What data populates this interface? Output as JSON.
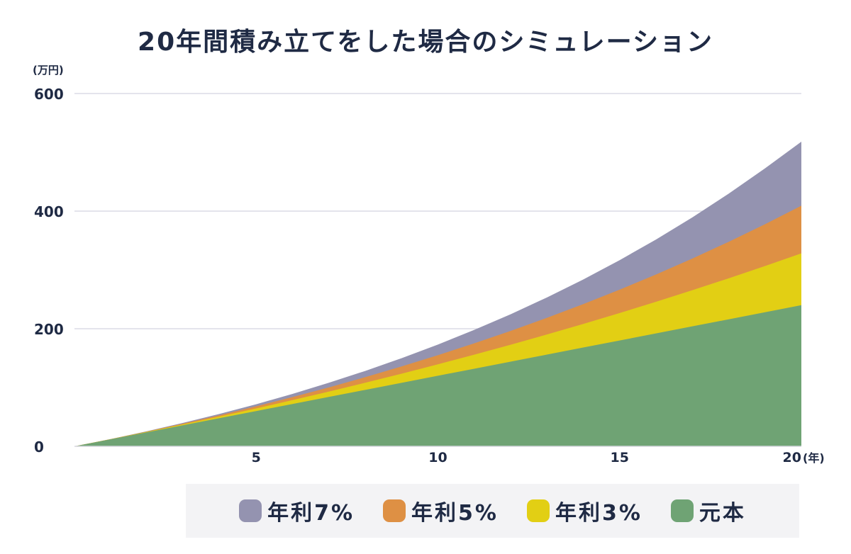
{
  "chart_data": {
    "type": "area",
    "stacked": false,
    "title": "20年間積み立てをした場合のシミュレーション",
    "y_unit_label": "(万円)",
    "x_unit_label": "(年)",
    "x_domain": [
      0,
      20
    ],
    "ylim": [
      0,
      600
    ],
    "y_ticks": [
      {
        "value": 0,
        "label": "0"
      },
      {
        "value": 200,
        "label": "200"
      },
      {
        "value": 400,
        "label": "400"
      },
      {
        "value": 600,
        "label": "600"
      }
    ],
    "x_ticks": [
      {
        "value": 5,
        "label": "5"
      },
      {
        "value": 10,
        "label": "10"
      },
      {
        "value": 15,
        "label": "15"
      },
      {
        "value": 20,
        "label": "20"
      }
    ],
    "gridlines": true,
    "legend_placement": "bottom",
    "x": [
      0,
      1,
      2,
      3,
      4,
      5,
      6,
      7,
      8,
      9,
      10,
      11,
      12,
      13,
      14,
      15,
      16,
      17,
      18,
      19,
      20
    ],
    "series": [
      {
        "name": "年利7%",
        "color": "#9493b0",
        "values": [
          0,
          12.4,
          25.7,
          40.0,
          55.3,
          71.6,
          89.2,
          108.1,
          128.2,
          149.9,
          173.1,
          198.0,
          224.6,
          253.2,
          283.8,
          316.6,
          351.7,
          389.3,
          429.6,
          472.8,
          518.1
        ]
      },
      {
        "name": "年利5%",
        "color": "#de9044",
        "values": [
          0,
          12.3,
          25.2,
          38.8,
          53.0,
          68.0,
          83.7,
          100.2,
          117.6,
          135.8,
          155.0,
          175.1,
          196.3,
          218.5,
          241.9,
          266.4,
          292.2,
          319.3,
          347.8,
          377.7,
          409.2
        ]
      },
      {
        "name": "年利3%",
        "color": "#e2cf14",
        "values": [
          0,
          12.2,
          24.7,
          37.5,
          50.8,
          64.5,
          78.6,
          93.1,
          108.1,
          123.5,
          139.5,
          155.9,
          172.8,
          190.2,
          208.2,
          226.7,
          245.8,
          265.5,
          285.7,
          306.6,
          328.2
        ]
      },
      {
        "name": "元本",
        "color": "#6fa374",
        "values": [
          0,
          12,
          24,
          36,
          48,
          60,
          72,
          84,
          96,
          108,
          120,
          132,
          144,
          156,
          168,
          180,
          192,
          204,
          216,
          228,
          240
        ]
      }
    ]
  }
}
